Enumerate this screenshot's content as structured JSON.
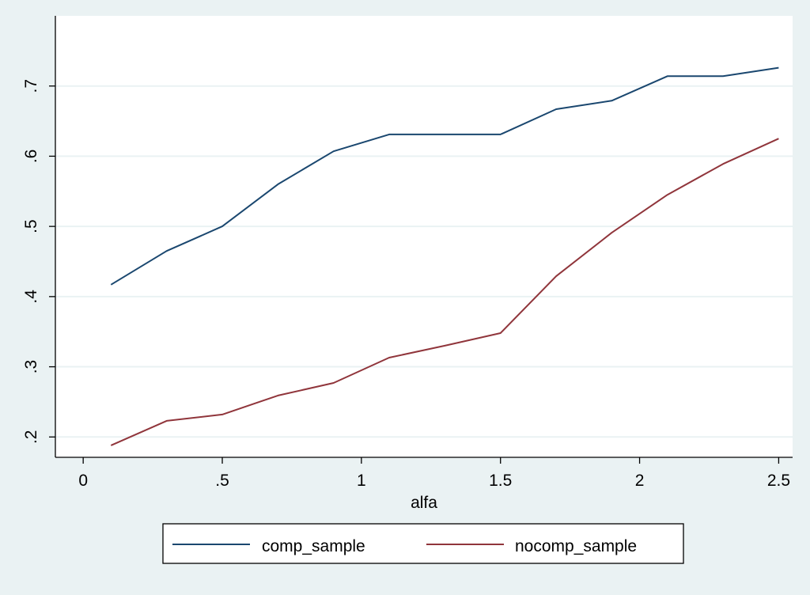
{
  "chart_data": {
    "type": "line",
    "xlabel": "alfa",
    "ylabel": "",
    "title": "",
    "xlim": [
      -0.1,
      2.55
    ],
    "ylim": [
      0.171,
      0.8
    ],
    "x_ticks": [
      0,
      0.5,
      1,
      1.5,
      2,
      2.5
    ],
    "x_tick_labels": [
      "0",
      ".5",
      "1",
      "1.5",
      "2",
      "2.5"
    ],
    "y_ticks": [
      0.2,
      0.3,
      0.4,
      0.5,
      0.6,
      0.7
    ],
    "y_tick_labels": [
      ".2",
      ".3",
      ".4",
      ".5",
      ".6",
      ".7"
    ],
    "grid": true,
    "legend_position": "bottom",
    "x": [
      0.1,
      0.3,
      0.5,
      0.7,
      0.9,
      1.1,
      1.3,
      1.5,
      1.7,
      1.9,
      2.1,
      2.3,
      2.5
    ],
    "series": [
      {
        "name": "comp_sample",
        "color": "#1a476f",
        "values": [
          0.417,
          0.465,
          0.5,
          0.56,
          0.607,
          0.631,
          0.631,
          0.631,
          0.667,
          0.679,
          0.714,
          0.714,
          0.726
        ]
      },
      {
        "name": "nocomp_sample",
        "color": "#90353b",
        "values": [
          0.188,
          0.223,
          0.232,
          0.259,
          0.277,
          0.313,
          0.33,
          0.348,
          0.429,
          0.491,
          0.545,
          0.589,
          0.625
        ]
      }
    ]
  },
  "colors": {
    "background": "#eaf2f3",
    "plot_background": "#ffffff",
    "gridline": "#eaf2f3"
  }
}
